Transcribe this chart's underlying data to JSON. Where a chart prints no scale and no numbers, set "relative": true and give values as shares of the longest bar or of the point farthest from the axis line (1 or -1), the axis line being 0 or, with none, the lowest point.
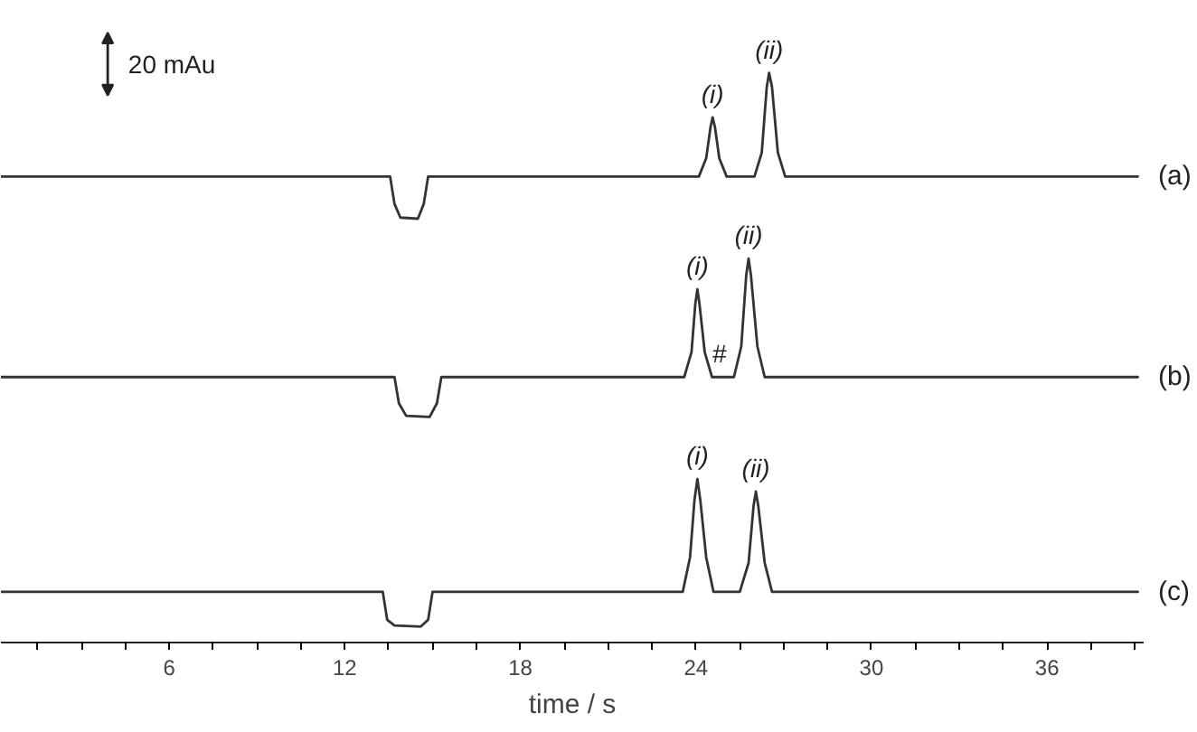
{
  "chart_data": {
    "type": "line",
    "relative": true,
    "xlabel": "time / s",
    "xlim": [
      0.25,
      39.3
    ],
    "xticks": [
      {
        "value": 1.5,
        "label": null
      },
      {
        "value": 3,
        "label": null
      },
      {
        "value": 4.5,
        "label": null
      },
      6,
      {
        "value": 7.5,
        "label": null
      },
      {
        "value": 9,
        "label": null
      },
      {
        "value": 10.5,
        "label": null
      },
      12,
      {
        "value": 13.5,
        "label": null
      },
      {
        "value": 15,
        "label": null
      },
      {
        "value": 16.5,
        "label": null
      },
      18,
      {
        "value": 19.5,
        "label": null
      },
      {
        "value": 21,
        "label": null
      },
      {
        "value": 22.5,
        "label": null
      },
      24,
      {
        "value": 25.5,
        "label": null
      },
      {
        "value": 27,
        "label": null
      },
      {
        "value": 28.5,
        "label": null
      },
      30,
      {
        "value": 31.5,
        "label": null
      },
      {
        "value": 33,
        "label": null
      },
      {
        "value": 34.5,
        "label": null
      },
      36,
      {
        "value": 37.5,
        "label": null
      },
      {
        "value": 39,
        "label": null
      }
    ],
    "grid": false,
    "series": [
      {
        "name": "(a)",
        "color": "#333333",
        "x": [
          0.25,
          13.55,
          13.7,
          13.9,
          14.5,
          14.7,
          14.85,
          24.1,
          24.35,
          24.5,
          24.57,
          24.65,
          24.8,
          25.05,
          26.0,
          26.25,
          26.42,
          26.5,
          26.6,
          26.8,
          27.05,
          39.1
        ],
        "values": [
          0.818,
          0.818,
          0.77,
          0.746,
          0.744,
          0.77,
          0.818,
          0.818,
          0.85,
          0.905,
          0.922,
          0.905,
          0.85,
          0.818,
          0.818,
          0.86,
          0.975,
          1.0,
          0.975,
          0.86,
          0.818,
          0.818
        ]
      },
      {
        "name": "(b)",
        "color": "#333333",
        "x": [
          0.25,
          13.7,
          13.85,
          14.1,
          14.9,
          15.15,
          15.3,
          23.6,
          23.85,
          23.98,
          24.05,
          24.12,
          24.3,
          24.55,
          25.3,
          25.55,
          25.72,
          25.8,
          25.88,
          26.1,
          26.35,
          39.1
        ],
        "values": [
          0.466,
          0.466,
          0.42,
          0.398,
          0.396,
          0.42,
          0.466,
          0.466,
          0.51,
          0.595,
          0.62,
          0.595,
          0.51,
          0.466,
          0.466,
          0.52,
          0.645,
          0.674,
          0.645,
          0.52,
          0.466,
          0.466
        ]
      },
      {
        "name": "(c)",
        "color": "#333333",
        "x": [
          0.25,
          13.3,
          13.45,
          13.7,
          14.6,
          14.85,
          15.0,
          23.55,
          23.8,
          23.95,
          24.05,
          24.15,
          24.35,
          24.6,
          25.5,
          25.8,
          25.97,
          26.05,
          26.13,
          26.35,
          26.6,
          39.1
        ],
        "values": [
          0.089,
          0.089,
          0.04,
          0.03,
          0.028,
          0.04,
          0.089,
          0.089,
          0.15,
          0.25,
          0.287,
          0.25,
          0.15,
          0.089,
          0.089,
          0.14,
          0.24,
          0.265,
          0.24,
          0.14,
          0.089,
          0.089
        ]
      }
    ],
    "annotations": [
      "20 mAu",
      {
        "text": "(i)",
        "x": 24.57,
        "y": 0.922
      },
      {
        "text": "(ii)",
        "x": 26.5,
        "y": 1.0
      },
      {
        "text": "(i)",
        "x": 24.05,
        "y": 0.62
      },
      {
        "text": "(ii)",
        "x": 25.8,
        "y": 0.674
      },
      {
        "text": "#",
        "x": 24.8,
        "y": 0.466
      },
      {
        "text": "(i)",
        "x": 24.05,
        "y": 0.287
      },
      {
        "text": "(ii)",
        "x": 26.05,
        "y": 0.265
      }
    ]
  }
}
